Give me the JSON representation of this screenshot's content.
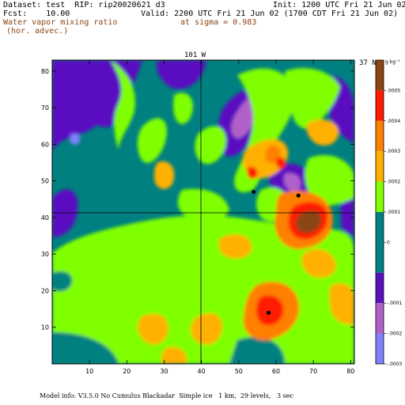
{
  "header": {
    "dataset": "Dataset: test  RIP: rip20020621 d3",
    "init": "Init: 1200 UTC Fri 21 Jun 02",
    "fcst": "Fcst:    10.00",
    "valid": "Valid: 2200 UTC Fri 21 Jun 02 (1700 CDT Fri 21 Jun 02)",
    "field": "Water vapor mixing ratio",
    "sigma": "at sigma = 0.983",
    "advec": "(hor. advec.)"
  },
  "map": {
    "lon_label": "101 W",
    "lat_label": "37 N",
    "x_ticks": [
      "10",
      "20",
      "30",
      "40",
      "50",
      "60",
      "70",
      "80"
    ],
    "y_ticks": [
      "10",
      "20",
      "30",
      "40",
      "50",
      "60",
      "70",
      "80"
    ],
    "x_range": [
      0,
      81
    ],
    "y_range": [
      0,
      83
    ],
    "crosshair": {
      "x": 40,
      "y": 41
    },
    "stations": [
      {
        "x": 54,
        "y": 47
      },
      {
        "x": 66,
        "y": 46
      },
      {
        "x": 58,
        "y": 14
      }
    ]
  },
  "colorbar": {
    "unit": "g kg⁻¹",
    "levels": [
      {
        "label": ".0005",
        "color": "#8b4513"
      },
      {
        "label": ".0004",
        "color": "#ff1a00"
      },
      {
        "label": ".0003",
        "color": "#ff7f00"
      },
      {
        "label": ".0002",
        "color": "#ffb000"
      },
      {
        "label": ".0001",
        "color": "#80ff00"
      },
      {
        "label": "0",
        "color": "#008080"
      },
      {
        "label": "-.0001",
        "color": "#5a10c0"
      },
      {
        "label": "-.0002",
        "color": "#b060c8"
      },
      {
        "label": "-.0003",
        "color": "#8080ff"
      }
    ],
    "extra_colors": [
      "#008080"
    ]
  },
  "footer": "Model info: V3.5.0 No Cumulus Blackadar  Simple ice   1 km,  29 levels,   3 sec"
}
